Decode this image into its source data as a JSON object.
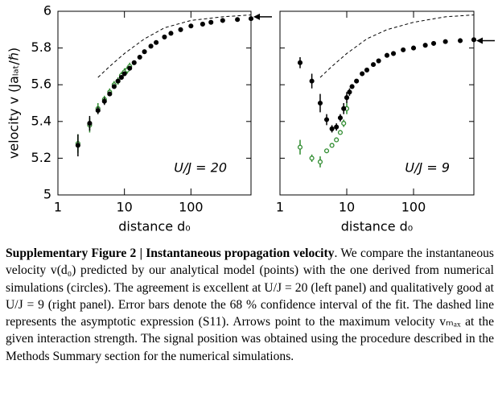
{
  "chart_data": [
    {
      "type": "scatter",
      "xscale": "log",
      "xlim": [
        1,
        800
      ],
      "ylim": [
        5,
        6
      ],
      "xticks": [
        1,
        10,
        100
      ],
      "yticks": [
        5,
        5.2,
        5.4,
        5.6,
        5.8,
        6
      ],
      "ytick_labels": true,
      "xlabel": "distance d₀",
      "ylabel": "velocity v (Jaₗₐₜ/ℏ)",
      "annotation": "U/J = 20",
      "arrow": 5.97,
      "series": [
        {
          "style": "dashed",
          "color": "#000000",
          "x": [
            4,
            6,
            10,
            20,
            40,
            100,
            300,
            800
          ],
          "values": [
            5.64,
            5.7,
            5.77,
            5.85,
            5.91,
            5.95,
            5.97,
            5.98
          ]
        },
        {
          "style": "open",
          "color": "#2e8b2e",
          "x": [
            2,
            3,
            4,
            5,
            6,
            7,
            8,
            9,
            10,
            11,
            12
          ],
          "values": [
            5.28,
            5.38,
            5.47,
            5.52,
            5.56,
            5.6,
            5.62,
            5.65,
            5.67,
            5.68,
            5.7
          ],
          "errors": [
            0.05,
            0.04,
            0.03,
            0.02,
            0.02,
            0.02,
            0.02,
            0.02,
            0.02,
            0.02,
            0.02
          ]
        },
        {
          "style": "filled",
          "color": "#000000",
          "x": [
            2,
            3,
            4,
            5,
            6,
            7,
            8,
            9,
            10,
            12,
            14,
            17,
            20,
            25,
            30,
            40,
            50,
            70,
            100,
            150,
            200,
            300,
            500,
            800
          ],
          "values": [
            5.27,
            5.39,
            5.46,
            5.51,
            5.55,
            5.59,
            5.62,
            5.64,
            5.66,
            5.69,
            5.72,
            5.75,
            5.78,
            5.81,
            5.83,
            5.86,
            5.88,
            5.9,
            5.92,
            5.93,
            5.94,
            5.95,
            5.955,
            5.96
          ],
          "errors": [
            0.06,
            0.04,
            0.02,
            0.02,
            null,
            null,
            null,
            null,
            null,
            null,
            null,
            null,
            null,
            null,
            null,
            null,
            null,
            null,
            null,
            null,
            null,
            null,
            null,
            null
          ]
        }
      ]
    },
    {
      "type": "scatter",
      "xscale": "log",
      "xlim": [
        1,
        800
      ],
      "ylim": [
        5,
        6
      ],
      "xticks": [
        1,
        10,
        100
      ],
      "yticks": [
        5,
        5.2,
        5.4,
        5.6,
        5.8,
        6
      ],
      "ytick_labels": false,
      "xlabel": "distance d₀",
      "annotation": "U/J = 9",
      "arrow": 5.84,
      "series": [
        {
          "style": "dashed",
          "color": "#000000",
          "x": [
            4,
            6,
            10,
            20,
            40,
            100,
            300,
            800
          ],
          "values": [
            5.64,
            5.7,
            5.77,
            5.85,
            5.9,
            5.94,
            5.97,
            5.98
          ]
        },
        {
          "style": "open",
          "color": "#2e8b2e",
          "x": [
            2,
            3,
            4,
            5,
            6,
            7,
            8,
            9,
            10
          ],
          "values": [
            5.26,
            5.2,
            5.18,
            5.24,
            5.27,
            5.3,
            5.34,
            5.39,
            5.47
          ],
          "errors": [
            0.04,
            0.02,
            0.03,
            0.01,
            0.01,
            0.01,
            0.01,
            0.02,
            0.03
          ]
        },
        {
          "style": "filled",
          "color": "#000000",
          "x": [
            2,
            3,
            4,
            5,
            6,
            7,
            8,
            9,
            10,
            11,
            12,
            14,
            17,
            20,
            25,
            30,
            40,
            50,
            70,
            100,
            150,
            200,
            300,
            500,
            800
          ],
          "values": [
            5.72,
            5.62,
            5.5,
            5.41,
            5.36,
            5.37,
            5.42,
            5.47,
            5.53,
            5.56,
            5.59,
            5.62,
            5.66,
            5.68,
            5.71,
            5.73,
            5.76,
            5.77,
            5.79,
            5.8,
            5.815,
            5.825,
            5.835,
            5.84,
            5.845
          ],
          "errors": [
            0.03,
            0.04,
            0.05,
            0.03,
            0.02,
            0.02,
            0.02,
            0.03,
            0.03,
            0.02,
            null,
            null,
            null,
            null,
            null,
            null,
            null,
            null,
            null,
            null,
            null,
            null,
            null,
            null,
            null
          ]
        }
      ]
    }
  ],
  "caption": {
    "heading": "Supplementary Figure 2 | Instantaneous propagation velocity",
    "text": ". We compare the instantaneous velocity v(d₀) predicted by our analytical model (points) with the one derived from numerical simulations (circles). The agreement is excellent at U/J = 20 (left panel) and qualitatively good at U/J = 9 (right panel). Error bars denote the 68 % confidence interval of the fit. The dashed line represents the asymptotic expression (S11). Arrows point to the maximum velocity vₘₐₓ at the given interaction strength. The signal position was obtained using the procedure described in the Methods Summary section for the numerical simulations."
  }
}
